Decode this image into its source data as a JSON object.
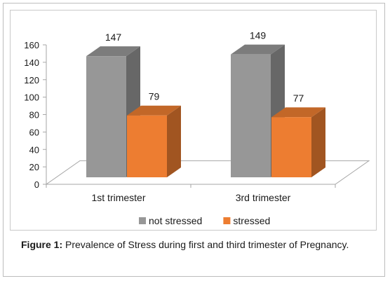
{
  "chart_data": {
    "type": "bar",
    "style": "3d-clustered-column",
    "categories": [
      "1st trimester",
      "3rd trimester"
    ],
    "series": [
      {
        "name": "not stressed",
        "color": "#979797",
        "values": [
          147,
          149
        ]
      },
      {
        "name": "stressed",
        "color": "#ed7d31",
        "values": [
          79,
          77
        ]
      }
    ],
    "data_labels": true,
    "ylim": [
      0,
      160
    ],
    "yticks": [
      0,
      20,
      40,
      60,
      80,
      100,
      120,
      140,
      160
    ],
    "grid": false,
    "legend": "bottom-center"
  },
  "caption": {
    "label": "Figure 1:",
    "text": "Prevalence of Stress during first and third trimester of Pregnancy."
  }
}
